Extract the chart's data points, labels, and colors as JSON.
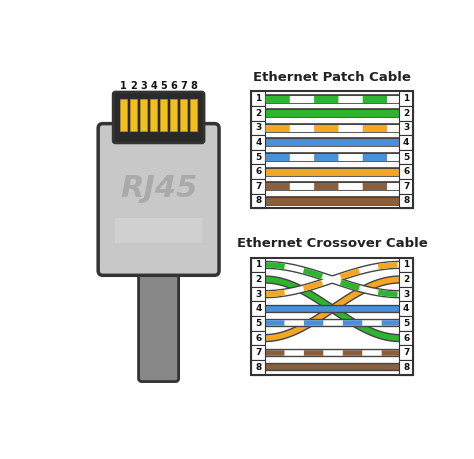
{
  "bg_color": "#ffffff",
  "patch_title": "Ethernet Patch Cable",
  "crossover_title": "Ethernet Crossover Cable",
  "wire_colors": [
    {
      "name": "white-green",
      "solid": "#ffffff",
      "stripe": "#2db52d"
    },
    {
      "name": "green",
      "solid": "#2db52d",
      "stripe": "#2db52d"
    },
    {
      "name": "white-orange",
      "solid": "#ffffff",
      "stripe": "#f5a623"
    },
    {
      "name": "blue",
      "solid": "#4a90d9",
      "stripe": "#4a90d9"
    },
    {
      "name": "white-blue",
      "solid": "#ffffff",
      "stripe": "#4a90d9"
    },
    {
      "name": "orange",
      "solid": "#f5a623",
      "stripe": "#f5a623"
    },
    {
      "name": "white-brown",
      "solid": "#ffffff",
      "stripe": "#8B5e3c"
    },
    {
      "name": "brown",
      "solid": "#8B5e3c",
      "stripe": "#8B5e3c"
    }
  ],
  "crossover_left_to_right": [
    2,
    5,
    0,
    3,
    4,
    1,
    6,
    7
  ],
  "connector_body_color": "#c8c8c8",
  "connector_dark_color": "#aaaaaa",
  "connector_outline": "#333333",
  "connector_label": "RJ45",
  "pin_color": "#f0c020",
  "pin_dark": "#c8960a",
  "cable_color": "#888888",
  "label_color": "#222222",
  "number_color": "#111111",
  "box_bg": "#ffffff",
  "latch_color": "#d0d0d0"
}
